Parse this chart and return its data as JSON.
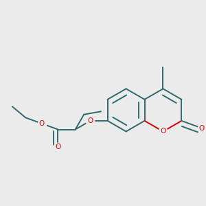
{
  "bg_color": "#ebebeb",
  "bond_color": "#2d6b6b",
  "heteroatom_color": "#dd0000",
  "bond_lw": 1.4,
  "fig_w": 3.0,
  "fig_h": 3.0,
  "dpi": 100,
  "xlim": [
    0.0,
    1.0
  ],
  "ylim": [
    0.22,
    0.85
  ]
}
